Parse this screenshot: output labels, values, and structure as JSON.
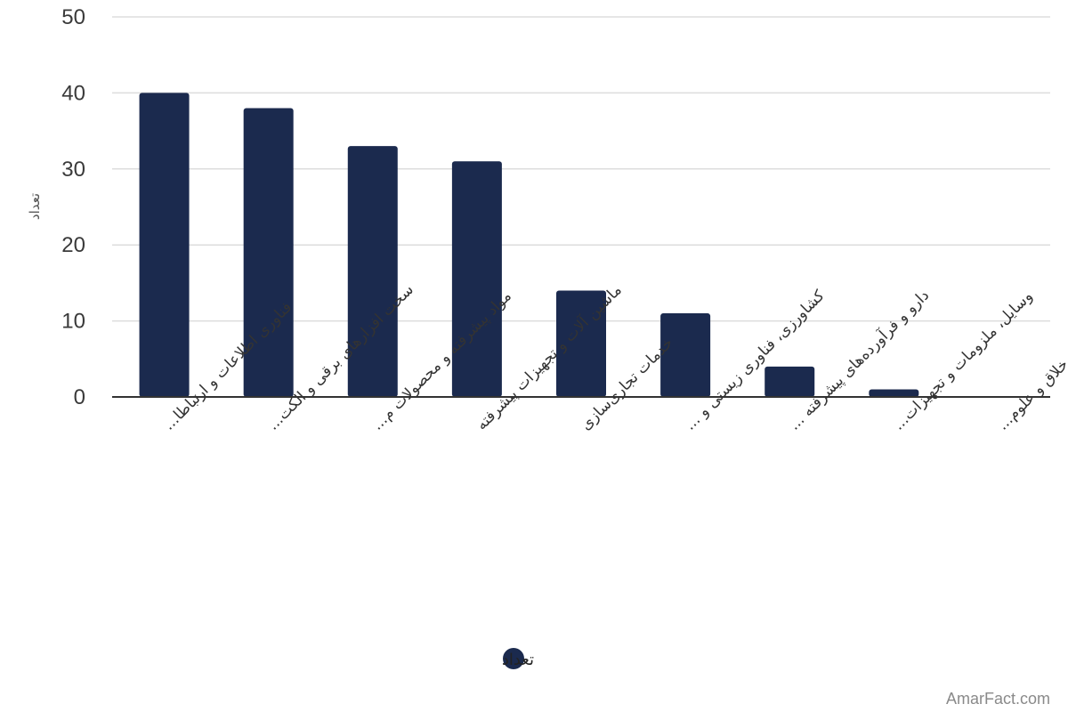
{
  "chart_data": {
    "type": "bar",
    "categories": [
      "فناوری اطلاعات و ارتباطا...",
      "سخت افزارهای برقی و الکت...",
      "مواد پیشرفته و محصولات م...",
      "ماشین آلات و تجهیزات پیشرفته",
      "خدمات تجاری‌سازی",
      "کشاورزی، فناوری زیستی و ...",
      "دارو و فرآورده‌های پیشرفته ...",
      "وسایل، ملزومات و تجهیزات...",
      "صنایع‌فرهنگی، خلاق و علوم..."
    ],
    "series": [
      {
        "name": "تعداد",
        "values": [
          40,
          38,
          33,
          31,
          14,
          11,
          4,
          1,
          0
        ]
      }
    ],
    "ylabel": "تعداد",
    "xlabel": "",
    "ylim": [
      0,
      50
    ],
    "yticks": [
      0,
      10,
      20,
      30,
      40,
      50
    ],
    "grid": true,
    "legend_position": "bottom",
    "colors": {
      "bar": "#1b2a4e",
      "grid": "#dddddd",
      "axis": "#333333"
    }
  },
  "watermark": "AmarFact.com"
}
